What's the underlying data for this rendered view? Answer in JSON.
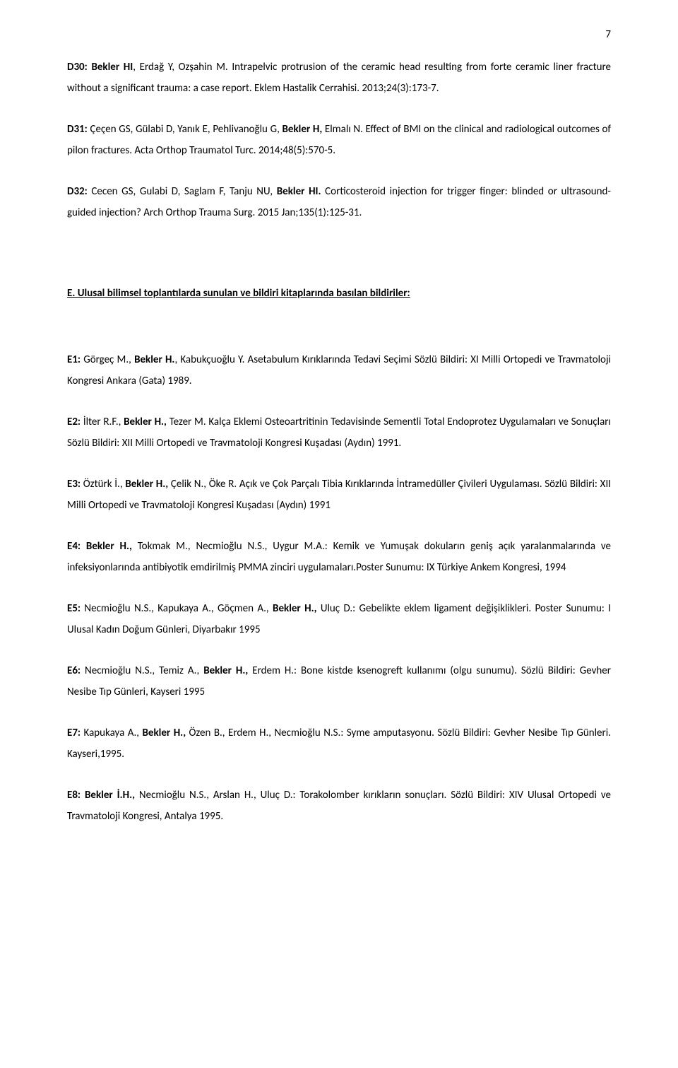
{
  "page_number": "7",
  "typography": {
    "body_fontsize_pt": 11,
    "line_height": 2.0,
    "font_family": "Calibri",
    "text_color": "#000000",
    "background_color": "#ffffff"
  },
  "entries_top": [
    {
      "label": "D30:",
      "bold_authors": "Bekler HI",
      "rest": ", Erdağ Y, Ozşahin M. Intrapelvic protrusion of the ceramic head resulting from forte ceramic liner fracture without a significant trauma: a case report. Eklem Hastalik Cerrahisi. 2013;24(3):173-7."
    },
    {
      "label": "D31:",
      "plain_before": " Çeçen GS, Gülabi D, Yanık E, Pehlivanoğlu G, ",
      "bold_authors": "Bekler H,",
      "rest": " Elmalı N. Effect of BMI on the clinical and radiological outcomes of pilon fractures. Acta Orthop Traumatol Turc. 2014;48(5):570-5."
    },
    {
      "label": "D32:",
      "plain_before": " Cecen GS, Gulabi D, Saglam F, Tanju NU, ",
      "bold_authors": "Bekler HI.",
      "rest": " Corticosteroid injection for trigger finger: blinded or ultrasound-guided injection? Arch Orthop Trauma Surg. 2015 Jan;135(1):125-31."
    }
  ],
  "section_heading": "E. Ulusal bilimsel toplantılarda sunulan ve bildiri kitaplarında basılan bildiriler:",
  "entries_bottom": [
    {
      "label": "E1:",
      "plain_before": " Görgeç M., ",
      "bold_authors": "Bekler H.",
      "rest": ", Kabukçuoğlu Y. Asetabulum Kırıklarında Tedavi Seçimi Sözlü Bildiri: XI Milli Ortopedi ve Travmatoloji Kongresi Ankara (Gata) 1989."
    },
    {
      "label": "E2:",
      "plain_before": " İlter R.F., ",
      "bold_authors": "Bekler H.,",
      "rest": " Tezer M. Kalça Eklemi Osteoartritinin Tedavisinde Sementli Total Endoprotez Uygulamaları ve Sonuçları Sözlü Bildiri: XII Milli Ortopedi ve Travmatoloji Kongresi Kuşadası (Aydın) 1991."
    },
    {
      "label": "E3:",
      "plain_before": " Öztürk İ., ",
      "bold_authors": "Bekler H.,",
      "rest": " Çelik N., Öke R. Açık ve Çok Parçalı Tibia Kırıklarında İntramedüller Çivileri Uygulaması. Sözlü Bildiri: XII Milli Ortopedi ve Travmatoloji Kongresi Kuşadası (Aydın) 1991"
    },
    {
      "label": "E4:",
      "bold_authors": " Bekler H.,",
      "rest": " Tokmak M., Necmioğlu N.S., Uygur M.A.: Kemik ve Yumuşak dokuların geniş açık yaralanmalarında ve infeksiyonlarında antibiyotik emdirilmiş PMMA zinciri uygulamaları.Poster Sunumu: IX Türkiye Ankem Kongresi, 1994"
    },
    {
      "label": "E5:",
      "plain_before": " Necmioğlu N.S., Kapukaya A., Göçmen A., ",
      "bold_authors": "Bekler H.,",
      "rest": " Uluç D.:  Gebelikte eklem ligament değişiklikleri. Poster Sunumu: I Ulusal Kadın Doğum Günleri, Diyarbakır 1995"
    },
    {
      "label": "E6:",
      "plain_before": " Necmioğlu N.S., Temiz A., ",
      "bold_authors": "Bekler H.,",
      "rest": " Erdem H.: Bone kistde ksenogreft kullanımı (olgu sunumu). Sözlü Bildiri: Gevher Nesibe Tıp Günleri, Kayseri 1995"
    },
    {
      "label": "E7:",
      "plain_before": " Kapukaya A., ",
      "bold_authors": "Bekler H.,",
      "rest": " Özen B., Erdem H., Necmioğlu N.S.: Syme amputasyonu. Sözlü Bildiri: Gevher Nesibe Tıp Günleri. Kayseri,1995."
    },
    {
      "label": "E8:",
      "bold_authors": "  Bekler İ.H.,",
      "rest": " Necmioğlu N.S., Arslan H., Uluç D.: Torakolomber kırıkların sonuçları. Sözlü Bildiri: XIV Ulusal Ortopedi ve Travmatoloji Kongresi, Antalya 1995."
    }
  ]
}
